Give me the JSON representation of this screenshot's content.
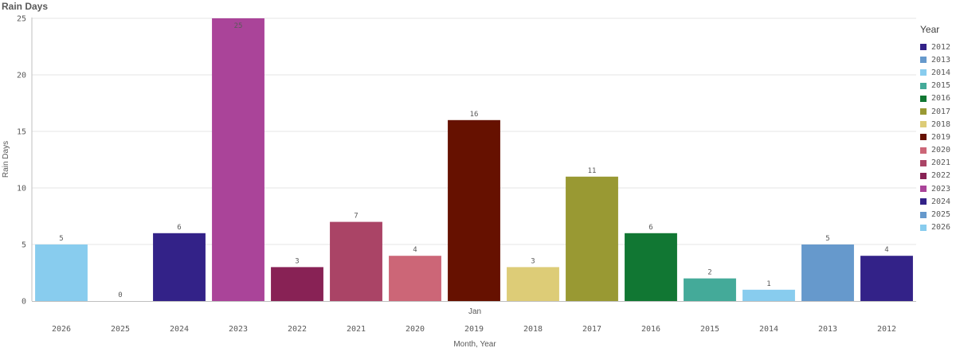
{
  "chart_data": {
    "type": "bar",
    "title": "Rain Days",
    "ylabel": "Rain Days",
    "xlabel": "Month, Year",
    "group_label": "Jan",
    "ylim": [
      0,
      25
    ],
    "yticks": [
      0,
      5,
      10,
      15,
      20,
      25
    ],
    "categories": [
      "2026",
      "2025",
      "2024",
      "2023",
      "2022",
      "2021",
      "2020",
      "2019",
      "2018",
      "2017",
      "2016",
      "2015",
      "2014",
      "2013",
      "2012"
    ],
    "values": [
      5,
      0,
      6,
      25,
      3,
      7,
      4,
      16,
      3,
      11,
      6,
      2,
      1,
      5,
      4
    ],
    "legend_title": "Year",
    "legend_position": "right",
    "grid": true,
    "legend": [
      {
        "name": "2012",
        "color": "#332288"
      },
      {
        "name": "2013",
        "color": "#6699cc"
      },
      {
        "name": "2014",
        "color": "#88ccee"
      },
      {
        "name": "2015",
        "color": "#44aa99"
      },
      {
        "name": "2016",
        "color": "#117733"
      },
      {
        "name": "2017",
        "color": "#999933"
      },
      {
        "name": "2018",
        "color": "#ddcc77"
      },
      {
        "name": "2019",
        "color": "#661100"
      },
      {
        "name": "2020",
        "color": "#cc6677"
      },
      {
        "name": "2021",
        "color": "#aa4466"
      },
      {
        "name": "2022",
        "color": "#882255"
      },
      {
        "name": "2023",
        "color": "#aa4499"
      },
      {
        "name": "2024",
        "color": "#332288"
      },
      {
        "name": "2025",
        "color": "#6699cc"
      },
      {
        "name": "2026",
        "color": "#88ccee"
      }
    ]
  }
}
